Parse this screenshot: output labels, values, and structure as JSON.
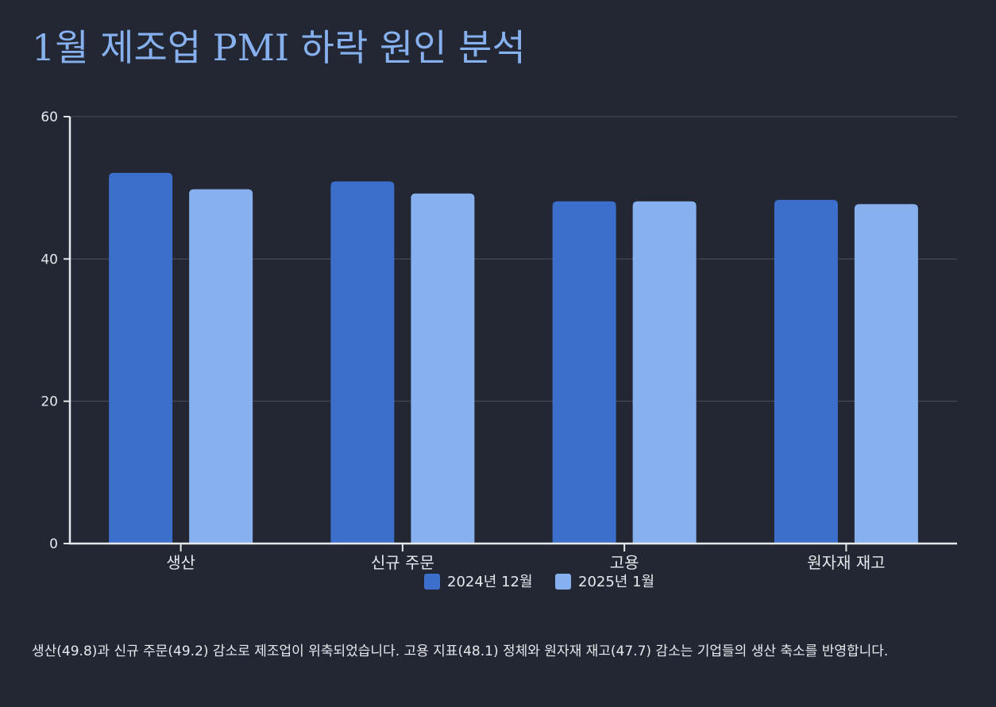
{
  "title": "1월 제조업 PMI 하락 원인 분석",
  "chart_data": {
    "type": "bar",
    "categories": [
      "생산",
      "신규 주문",
      "고용",
      "원자재 재고"
    ],
    "series": [
      {
        "name": "2024년 12월",
        "color": "#3b6fcb",
        "values": [
          52.1,
          50.9,
          48.1,
          48.3
        ]
      },
      {
        "name": "2025년 1월",
        "color": "#86b0ee",
        "values": [
          49.8,
          49.2,
          48.1,
          47.7
        ]
      }
    ],
    "ylim": [
      0,
      60
    ],
    "yticks": [
      0,
      20,
      40,
      60
    ],
    "grid": true,
    "legend": "bottom-center"
  },
  "caption": "생산(49.8)과 신규 주문(49.2) 감소로 제조업이 위축되었습니다. 고용 지표(48.1) 정체와 원자재 재고(47.7) 감소는 기업들의 생산 축소를 반영합니다."
}
